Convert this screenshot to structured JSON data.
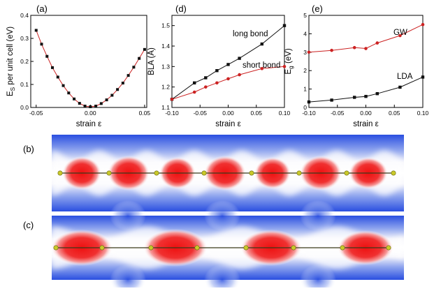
{
  "panels": {
    "a": "(a)",
    "b": "(b)",
    "c": "(c)",
    "d": "(d)",
    "e": "(e)"
  },
  "colors": {
    "red": "#cc2222",
    "black": "#111111",
    "atom": "#c9c92a",
    "bond": "#3a3a1a"
  },
  "chart_data": [
    {
      "type": "scatter",
      "panel": "(a)",
      "xlabel": "strain ε",
      "ylabel": "E_S per unit cell (eV)",
      "xlim": [
        -0.055,
        0.052
      ],
      "ylim": [
        0,
        0.4
      ],
      "xticks": [
        "-0.05",
        "0.00",
        "0.05"
      ],
      "yticks": [
        "0.0",
        "0.1",
        "0.2",
        "0.3",
        "0.4"
      ],
      "series": [
        {
          "color": "red",
          "marker": "square-black",
          "x": [
            -0.05,
            -0.045,
            -0.04,
            -0.035,
            -0.03,
            -0.025,
            -0.02,
            -0.015,
            -0.01,
            -0.005,
            0.0,
            0.005,
            0.01,
            0.015,
            0.02,
            0.025,
            0.03,
            0.035,
            0.04,
            0.045,
            0.05
          ],
          "y": [
            0.335,
            0.275,
            0.222,
            0.173,
            0.132,
            0.095,
            0.063,
            0.037,
            0.018,
            0.006,
            0.003,
            0.006,
            0.017,
            0.033,
            0.053,
            0.078,
            0.106,
            0.139,
            0.175,
            0.213,
            0.252
          ]
        }
      ]
    },
    {
      "type": "line",
      "panel": "(d)",
      "xlabel": "strain ε",
      "ylabel": "BLA (Å)",
      "xlim": [
        -0.1,
        0.1
      ],
      "ylim": [
        1.1,
        1.55
      ],
      "xticks": [
        "-0.10",
        "-0.05",
        "0.00",
        "0.05",
        "0.10"
      ],
      "yticks": [
        "1.1",
        "1.2",
        "1.3",
        "1.4",
        "1.5"
      ],
      "series": [
        {
          "name": "long bond",
          "color": "black",
          "x": [
            -0.1,
            -0.06,
            -0.04,
            -0.02,
            0.0,
            0.02,
            0.06,
            0.1
          ],
          "y": [
            1.14,
            1.22,
            1.245,
            1.28,
            1.31,
            1.34,
            1.41,
            1.5
          ]
        },
        {
          "name": "short bond",
          "color": "red",
          "x": [
            -0.1,
            -0.06,
            -0.04,
            -0.02,
            0.0,
            0.02,
            0.06,
            0.1
          ],
          "y": [
            1.14,
            1.175,
            1.2,
            1.22,
            1.24,
            1.26,
            1.29,
            1.3
          ]
        }
      ]
    },
    {
      "type": "line",
      "panel": "(e)",
      "xlabel": "strain ε",
      "ylabel": "E_g (eV)",
      "xlim": [
        -0.1,
        0.1
      ],
      "ylim": [
        0,
        5
      ],
      "xticks": [
        "-0.10",
        "-0.05",
        "0.00",
        "0.05",
        "0.10"
      ],
      "yticks": [
        "0",
        "1",
        "2",
        "3",
        "4",
        "5"
      ],
      "series": [
        {
          "name": "GW",
          "color": "red",
          "x": [
            -0.1,
            -0.06,
            -0.02,
            0.0,
            0.02,
            0.06,
            0.1
          ],
          "y": [
            3.0,
            3.1,
            3.25,
            3.2,
            3.5,
            3.9,
            4.5
          ]
        },
        {
          "name": "LDA",
          "color": "black",
          "x": [
            -0.1,
            -0.06,
            -0.02,
            0.0,
            0.02,
            0.06,
            0.1
          ],
          "y": [
            0.3,
            0.4,
            0.55,
            0.6,
            0.75,
            1.1,
            1.65
          ]
        }
      ]
    }
  ]
}
